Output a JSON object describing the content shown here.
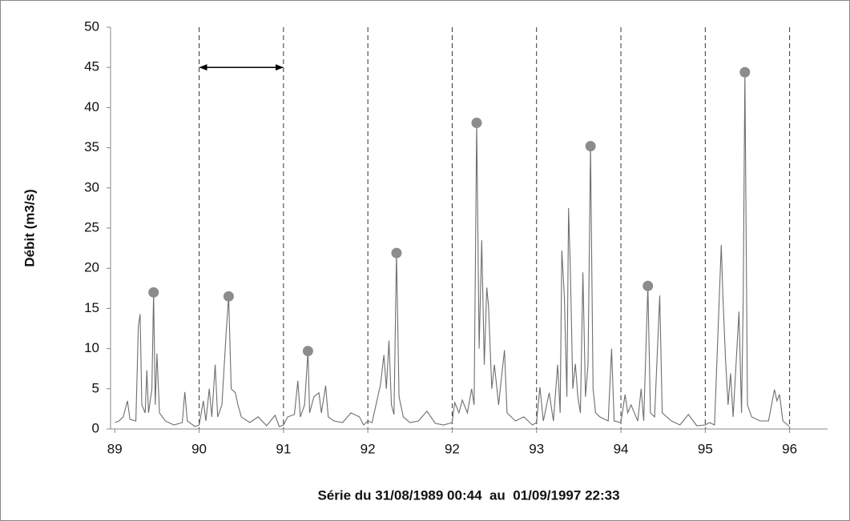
{
  "chart_data": {
    "type": "line",
    "ylabel": "Débit (m3/s)",
    "xlabel": "Série du 31/08/1989 00:44  au  01/09/1997 22:33",
    "xlim": [
      -0.05,
      8.45
    ],
    "xticks": [
      {
        "value": 0,
        "label": "89"
      },
      {
        "value": 1,
        "label": "90"
      },
      {
        "value": 2,
        "label": "91"
      },
      {
        "value": 3,
        "label": "92"
      },
      {
        "value": 4,
        "label": "92"
      },
      {
        "value": 5,
        "label": "93"
      },
      {
        "value": 6,
        "label": "94"
      },
      {
        "value": 7,
        "label": "95"
      },
      {
        "value": 8,
        "label": "96"
      }
    ],
    "ylim": [
      0,
      50
    ],
    "yticks": [
      0,
      5,
      10,
      15,
      20,
      25,
      30,
      35,
      40,
      45,
      50
    ],
    "color": "#6e6e6e",
    "x": [
      0,
      0.05,
      0.1,
      0.15,
      0.18,
      0.25,
      0.28,
      0.3,
      0.32,
      0.36,
      0.38,
      0.4,
      0.44,
      0.46,
      0.48,
      0.5,
      0.53,
      0.6,
      0.7,
      0.8,
      0.83,
      0.86,
      0.95,
      1.0,
      1.05,
      1.08,
      1.12,
      1.15,
      1.19,
      1.22,
      1.27,
      1.32,
      1.35,
      1.38,
      1.43,
      1.46,
      1.5,
      1.6,
      1.7,
      1.8,
      1.9,
      1.95,
      2.0,
      2.05,
      2.13,
      2.17,
      2.2,
      2.25,
      2.29,
      2.31,
      2.36,
      2.42,
      2.45,
      2.5,
      2.53,
      2.6,
      2.7,
      2.8,
      2.9,
      2.95,
      3.0,
      3.05,
      3.15,
      3.19,
      3.22,
      3.25,
      3.28,
      3.31,
      3.34,
      3.37,
      3.42,
      3.5,
      3.6,
      3.7,
      3.8,
      3.9,
      4.0,
      4.03,
      4.08,
      4.12,
      4.18,
      4.23,
      4.26,
      4.29,
      4.32,
      4.35,
      4.38,
      4.41,
      4.43,
      4.47,
      4.5,
      4.55,
      4.58,
      4.62,
      4.65,
      4.75,
      4.85,
      4.95,
      5.0,
      5.04,
      5.08,
      5.15,
      5.2,
      5.25,
      5.28,
      5.3,
      5.33,
      5.36,
      5.38,
      5.4,
      5.43,
      5.46,
      5.49,
      5.52,
      5.55,
      5.58,
      5.61,
      5.64,
      5.67,
      5.7,
      5.75,
      5.85,
      5.89,
      5.92,
      6.0,
      6.05,
      6.08,
      6.12,
      6.2,
      6.24,
      6.27,
      6.32,
      6.35,
      6.4,
      6.46,
      6.49,
      6.6,
      6.7,
      6.8,
      6.9,
      7.0,
      7.05,
      7.11,
      7.19,
      7.21,
      7.24,
      7.27,
      7.3,
      7.33,
      7.4,
      7.43,
      7.45,
      7.47,
      7.5,
      7.55,
      7.65,
      7.75,
      7.82,
      7.85,
      7.88,
      7.92,
      8.0
    ],
    "values": [
      0.8,
      1,
      1.5,
      3.5,
      1.2,
      1,
      12.8,
      14.3,
      3,
      2,
      7.3,
      2,
      5,
      17,
      3,
      9.4,
      2,
      1,
      0.5,
      0.8,
      4.6,
      1,
      0.3,
      0.5,
      3.5,
      1,
      5,
      1.5,
      8,
      1.5,
      3,
      12,
      16.5,
      5,
      4.5,
      3,
      1.5,
      0.8,
      1.5,
      0.4,
      1.7,
      0.3,
      0.5,
      1.5,
      1.8,
      6,
      1.5,
      3,
      9.7,
      2,
      4,
      4.5,
      2,
      5.4,
      1.5,
      1,
      0.8,
      2,
      1.5,
      0.5,
      1,
      0.8,
      5.5,
      9.2,
      5,
      11,
      3,
      1.8,
      21.9,
      4,
      1.5,
      0.8,
      1,
      2.2,
      0.7,
      0.5,
      0.8,
      3.3,
      2,
      3.6,
      2,
      5,
      3,
      38.1,
      10,
      23.5,
      8,
      17.6,
      15.4,
      5,
      8,
      3,
      6,
      9.8,
      2,
      1,
      1.5,
      0.5,
      0.8,
      5.2,
      1,
      4.5,
      1,
      8,
      2,
      22.2,
      16.4,
      4,
      27.5,
      20,
      5,
      8.1,
      4,
      2,
      19.5,
      4,
      8,
      35.2,
      5,
      2,
      1.5,
      1,
      10,
      1,
      0.8,
      4.3,
      2,
      3,
      1,
      5,
      1,
      17.8,
      2,
      1.5,
      16.6,
      2,
      1,
      0.5,
      1.8,
      0.4,
      0.5,
      0.8,
      0.5,
      22.9,
      16.4,
      8.7,
      3,
      6.9,
      1.5,
      14.6,
      2,
      16,
      44.4,
      3,
      1.5,
      1,
      1,
      4.9,
      3.5,
      4.3,
      1,
      0.3
    ],
    "markers": {
      "color": "#8c8c8c",
      "x": [
        0.46,
        1.35,
        2.29,
        3.34,
        4.29,
        5.64,
        6.32,
        7.47
      ],
      "values": [
        17,
        16.5,
        9.7,
        21.9,
        38.1,
        35.2,
        17.8,
        44.4
      ]
    },
    "dashed_lines": [
      1,
      2,
      3,
      4,
      5,
      6,
      7,
      8
    ],
    "arrow": {
      "x": [
        1,
        2
      ],
      "y": 45
    }
  }
}
